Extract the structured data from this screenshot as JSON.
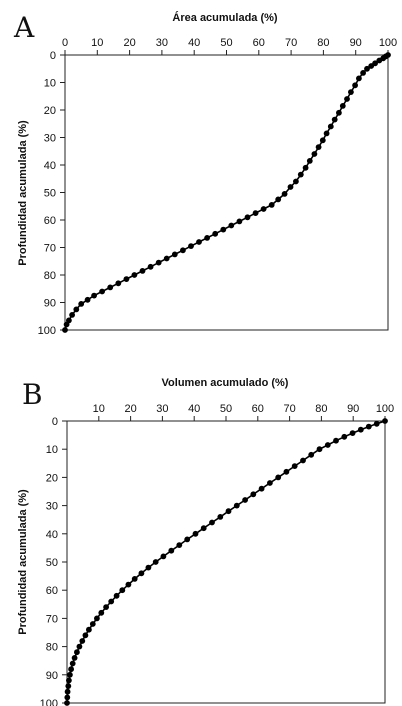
{
  "chart_data": [
    {
      "panel_label": "A",
      "type": "line",
      "title": "",
      "xlabel": "Área acumulada (%)",
      "ylabel": "Profundidad acumulada (%)",
      "xlim": [
        0,
        100
      ],
      "ylim": [
        0,
        100
      ],
      "y_inverted": true,
      "x_axis_position": "top",
      "x_ticks": [
        "0",
        "10",
        "20",
        "30",
        "40",
        "50",
        "60",
        "70",
        "80",
        "90",
        "100"
      ],
      "y_ticks": [
        "0",
        "10",
        "20",
        "30",
        "40",
        "50",
        "60",
        "70",
        "80",
        "90",
        "100"
      ],
      "grid": false,
      "marker": "filled-circle",
      "color": "#000000",
      "series": [
        {
          "x": [
            0,
            0.5,
            1.2,
            2.2,
            3.5,
            5,
            7,
            9,
            11.5,
            14,
            16.5,
            19,
            21.5,
            24,
            26.5,
            29,
            31.5,
            34,
            36.5,
            39,
            41.5,
            44,
            46.5,
            49,
            51.5,
            54,
            56.5,
            59,
            61.5,
            64,
            66,
            68,
            69.8,
            71.5,
            73,
            74.5,
            75.8,
            77.2,
            78.5,
            79.8,
            81,
            82.3,
            83.5,
            84.8,
            86,
            87.3,
            88.5,
            89.8,
            91,
            92.3,
            93.5,
            94.8,
            96,
            97.3,
            98.5,
            99.3,
            100
          ],
          "y": [
            100,
            98,
            96.5,
            94.5,
            92.5,
            90.5,
            89,
            87.5,
            86,
            84.5,
            83,
            81.5,
            80,
            78.5,
            77,
            75.5,
            74,
            72.5,
            71,
            69.5,
            68,
            66.5,
            65,
            63.5,
            62,
            60.5,
            59,
            57.5,
            56,
            54.5,
            52.5,
            50.5,
            48,
            46,
            43.5,
            41,
            38.5,
            36,
            33.5,
            31,
            28.5,
            26,
            23.5,
            21,
            18.5,
            16,
            13.5,
            11,
            8.5,
            6.5,
            5,
            4,
            3,
            2,
            1.2,
            0.5,
            0
          ]
        }
      ]
    },
    {
      "panel_label": "B",
      "type": "line",
      "title": "",
      "xlabel": "Volumen acumulado (%)",
      "ylabel": "Profundidad acumulada (%)",
      "xlim": [
        0,
        100
      ],
      "ylim": [
        0,
        100
      ],
      "y_inverted": true,
      "x_axis_position": "top",
      "x_ticks": [
        "10",
        "20",
        "30",
        "40",
        "50",
        "60",
        "70",
        "80",
        "90",
        "100"
      ],
      "y_ticks": [
        "0",
        "10",
        "20",
        "30",
        "40",
        "50",
        "60",
        "70",
        "80",
        "90",
        "100"
      ],
      "grid": false,
      "marker": "filled-circle",
      "color": "#000000",
      "series": [
        {
          "x": [
            0,
            0.1,
            0.2,
            0.4,
            0.6,
            0.9,
            1.3,
            1.8,
            2.4,
            3.1,
            3.9,
            4.8,
            5.8,
            6.9,
            8.1,
            9.4,
            10.8,
            12.3,
            13.9,
            15.6,
            17.4,
            19.3,
            21.3,
            23.4,
            25.6,
            27.9,
            30.3,
            32.8,
            35.3,
            37.8,
            40.4,
            43,
            45.6,
            48.2,
            50.8,
            53.4,
            56,
            58.6,
            61.2,
            63.8,
            66.4,
            69,
            71.6,
            74.2,
            76.8,
            79.4,
            82,
            84.6,
            87.2,
            89.8,
            92.4,
            94.9,
            97.4,
            100
          ],
          "y": [
            100,
            98,
            96,
            94,
            92,
            90,
            88,
            86,
            84,
            82,
            80,
            78,
            76,
            74,
            72,
            70,
            68,
            66,
            64,
            62,
            60,
            58,
            56,
            54,
            52,
            50,
            48,
            46,
            44,
            42,
            40,
            38,
            36,
            34,
            32,
            30,
            28,
            26,
            24,
            22,
            20,
            18,
            16,
            14,
            12,
            10,
            8.5,
            7,
            5.6,
            4.3,
            3.1,
            2,
            1,
            0
          ]
        }
      ]
    }
  ]
}
